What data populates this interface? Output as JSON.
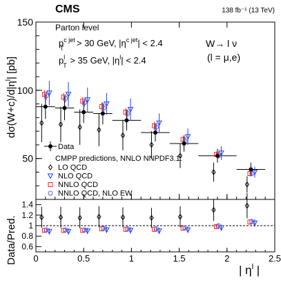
{
  "chart_data": {
    "type": "scatter",
    "experiment": "CMS",
    "lumi_label": "138 fb⁻¹ (13 TeV)",
    "level_label": "Parton level",
    "cut_jet_label": "p",
    "cut_jet_sup": "c jet",
    "cut_jet_sub": "T",
    "cut_jet_text": " > 30 GeV, |η",
    "cut_jet_sup2": "c jet",
    "cut_jet_tail": "| < 2.4",
    "cut_lep_label": "p",
    "cut_lep_sup": "l",
    "cut_lep_sub": "T",
    "cut_lep_text": " > 35 GeV, |η",
    "cut_lep_sup2": "l",
    "cut_lep_tail": "| < 2.4",
    "process_label": "W→ l ν",
    "process_sublabel": "(l = μ,e)",
    "ylabel_top": "dσ(W+c)/d|η",
    "ylabel_top_sup": "l",
    "ylabel_top_tail": "| [pb]",
    "ylabel_bottom": "Data/Pred.",
    "xlabel": "| η",
    "xlabel_sup": "l",
    "xlabel_tail": " |",
    "xlim": [
      0,
      2.5
    ],
    "ylim_top": [
      20,
      150
    ],
    "ylim_bottom": [
      0.5,
      1.5
    ],
    "x_ticks": [
      "0",
      "0.5",
      "1",
      "1.5",
      "2",
      "2.5"
    ],
    "x_tick_values": [
      0,
      0.5,
      1,
      1.5,
      2,
      2.5
    ],
    "y_ticks_top": [
      "50",
      "100",
      "150"
    ],
    "y_tick_values_top": [
      50,
      100,
      150
    ],
    "y_ticks_bottom": [
      "0.6",
      "0.8",
      "1",
      "1.2",
      "1.4"
    ],
    "y_tick_values_bottom": [
      0.6,
      0.8,
      1.0,
      1.2,
      1.4
    ],
    "legend_data": "Data",
    "legend_header": "CMPP predictions, NNLO NNPDF3.1:",
    "bins": [
      {
        "lo": 0.0,
        "hi": 0.2
      },
      {
        "lo": 0.2,
        "hi": 0.4
      },
      {
        "lo": 0.4,
        "hi": 0.6
      },
      {
        "lo": 0.6,
        "hi": 0.8
      },
      {
        "lo": 0.8,
        "hi": 1.1
      },
      {
        "lo": 1.1,
        "hi": 1.4
      },
      {
        "lo": 1.4,
        "hi": 1.7
      },
      {
        "lo": 1.7,
        "hi": 2.1
      },
      {
        "lo": 2.1,
        "hi": 2.4
      }
    ],
    "data": {
      "values": [
        88,
        87,
        84,
        83,
        78,
        69,
        61,
        52,
        42
      ],
      "stat_err": [
        3,
        3,
        3,
        3,
        3,
        2.5,
        2,
        2,
        2
      ],
      "tot_err": [
        9,
        9,
        8,
        8,
        7.5,
        6.5,
        6,
        5,
        5
      ]
    },
    "series": [
      {
        "name": "LO QCD",
        "marker": "diamond",
        "color": "#000000",
        "x_offset": -0.04,
        "values": [
          76,
          75,
          73,
          71,
          67,
          60,
          52,
          40,
          31
        ],
        "errors": [
          14,
          13,
          13,
          12,
          11,
          10,
          9,
          7,
          6
        ],
        "ratio": [
          1.16,
          1.16,
          1.15,
          1.17,
          1.16,
          1.15,
          1.17,
          1.3,
          1.38
        ],
        "ratio_err": [
          0.2,
          0.2,
          0.2,
          0.2,
          0.19,
          0.19,
          0.2,
          0.21,
          0.24
        ]
      },
      {
        "name": "NLO QCD",
        "marker": "triangle-down",
        "color": "#1f3fff",
        "x_offset": 0.04,
        "values": [
          98,
          97,
          93,
          90,
          86,
          76,
          66,
          54,
          40
        ],
        "errors": [
          9,
          9,
          9,
          8,
          8,
          7,
          6,
          5,
          4
        ],
        "ratio": [
          0.89,
          0.89,
          0.9,
          0.92,
          0.91,
          0.9,
          0.92,
          0.96,
          1.05
        ],
        "ratio_err": [
          0.06,
          0.06,
          0.06,
          0.06,
          0.06,
          0.06,
          0.06,
          0.06,
          0.07
        ]
      },
      {
        "name": "NNLO QCD",
        "marker": "square",
        "color": "#ff2020",
        "x_offset": -0.01,
        "values": [
          97,
          95,
          92,
          88,
          84,
          74,
          64,
          53,
          39
        ],
        "errors": [
          3,
          3,
          3,
          3,
          3,
          3,
          2,
          2,
          2
        ],
        "ratio": [
          0.91,
          0.91,
          0.91,
          0.94,
          0.93,
          0.93,
          0.95,
          0.98,
          1.07
        ],
        "ratio_err": [
          0.04,
          0.04,
          0.04,
          0.04,
          0.04,
          0.04,
          0.04,
          0.04,
          0.05
        ]
      },
      {
        "name": "NNLO QCD, NLO EW",
        "marker": "circle",
        "color": "#6060d0",
        "x_offset": 0.01,
        "values": [
          96,
          94,
          91,
          87,
          83,
          73,
          63,
          52,
          39
        ],
        "errors": [
          3,
          3,
          3,
          3,
          3,
          3,
          2,
          2,
          2
        ],
        "ratio": [
          0.92,
          0.92,
          0.92,
          0.95,
          0.94,
          0.94,
          0.96,
          1.0,
          1.08
        ],
        "ratio_err": [
          0.04,
          0.04,
          0.04,
          0.04,
          0.04,
          0.04,
          0.04,
          0.04,
          0.05
        ]
      }
    ]
  }
}
